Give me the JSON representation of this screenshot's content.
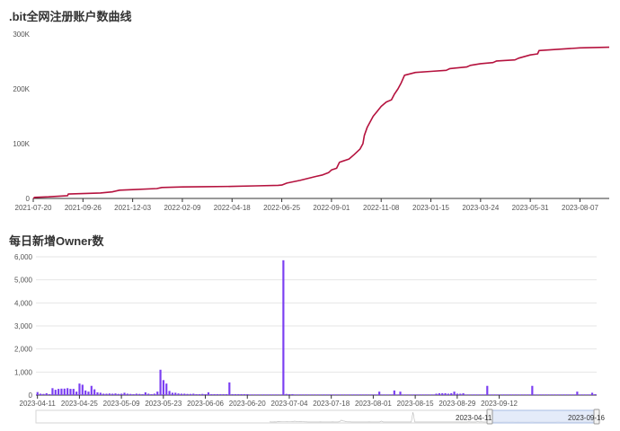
{
  "colors": {
    "line": "#b5123e",
    "bar": "#7b3ff2",
    "axis": "#333333",
    "grid": "#e6e6e6",
    "slider_fill": "#dde6f7",
    "slider_border": "#a9bde3"
  },
  "chart_data": [
    {
      "type": "line",
      "title": ".bit全网注册账户数曲线",
      "x_ticks": [
        "2021-07-20",
        "2021-09-26",
        "2021-12-03",
        "2022-02-09",
        "2022-04-18",
        "2022-06-25",
        "2022-09-01",
        "2022-11-08",
        "2023-01-15",
        "2023-03-24",
        "2023-05-31",
        "2023-08-07"
      ],
      "y_ticks": [
        "0",
        "100K",
        "200K",
        "300K"
      ],
      "ylim": [
        0,
        300000
      ],
      "x_range": [
        "2021-07-20",
        "2023-09-16"
      ],
      "series": [
        {
          "x": [
            "2021-07-20",
            "2021-07-22",
            "2021-08-10",
            "2021-09-05",
            "2021-09-06",
            "2021-10-20",
            "2021-11-05",
            "2021-11-15",
            "2021-12-03",
            "2022-01-05",
            "2022-01-12",
            "2022-02-09",
            "2022-03-10",
            "2022-04-18",
            "2022-05-20",
            "2022-06-20",
            "2022-06-25",
            "2022-07-02",
            "2022-07-20",
            "2022-08-10",
            "2022-08-20",
            "2022-08-28",
            "2022-09-01",
            "2022-09-08",
            "2022-09-12",
            "2022-09-25",
            "2022-10-02",
            "2022-10-10",
            "2022-10-14",
            "2022-10-16",
            "2022-10-20",
            "2022-10-24",
            "2022-10-28",
            "2022-11-02",
            "2022-11-08",
            "2022-11-15",
            "2022-11-22",
            "2022-11-26",
            "2022-12-01",
            "2022-12-05",
            "2022-12-10",
            "2022-12-25",
            "2023-01-15",
            "2023-02-05",
            "2023-02-10",
            "2023-03-05",
            "2023-03-10",
            "2023-03-24",
            "2023-04-10",
            "2023-04-15",
            "2023-05-10",
            "2023-05-15",
            "2023-05-31",
            "2023-06-10",
            "2023-06-12",
            "2023-07-05",
            "2023-08-07",
            "2023-09-16"
          ],
          "y": [
            0,
            2000,
            3000,
            5000,
            8000,
            10000,
            12000,
            15000,
            16000,
            18000,
            20000,
            21000,
            21500,
            22000,
            23000,
            24000,
            24500,
            28000,
            33000,
            40000,
            43000,
            47000,
            52000,
            55000,
            66000,
            72000,
            80000,
            90000,
            100000,
            115000,
            130000,
            140000,
            150000,
            158000,
            168000,
            176000,
            180000,
            190000,
            200000,
            210000,
            225000,
            230000,
            232000,
            234000,
            237000,
            240000,
            243000,
            246000,
            248000,
            251000,
            253000,
            256000,
            262000,
            264000,
            270000,
            272000,
            275000,
            276000
          ]
        }
      ]
    },
    {
      "type": "bar",
      "title": "每日新增Owner数",
      "x_ticks": [
        "2023-04-11",
        "2023-04-25",
        "2023-05-09",
        "2023-05-23",
        "2023-06-06",
        "2023-06-20",
        "2023-07-04",
        "2023-07-18",
        "2023-08-01",
        "2023-08-15",
        "2023-08-29",
        "2023-09-12"
      ],
      "y_ticks": [
        "0",
        "1,000",
        "2,000",
        "3,000",
        "4,000",
        "5,000",
        "6,000"
      ],
      "ylim": [
        0,
        6000
      ],
      "start_date": "2023-04-11",
      "values": [
        130,
        60,
        50,
        80,
        40,
        300,
        230,
        270,
        280,
        280,
        300,
        270,
        270,
        150,
        500,
        450,
        200,
        150,
        400,
        250,
        120,
        100,
        60,
        60,
        70,
        60,
        70,
        50,
        60,
        100,
        60,
        50,
        40,
        60,
        50,
        40,
        120,
        60,
        40,
        60,
        150,
        1100,
        650,
        500,
        180,
        100,
        100,
        70,
        60,
        60,
        50,
        50,
        60,
        40,
        40,
        50,
        40,
        120,
        40,
        40,
        40,
        40,
        40,
        40,
        550,
        40,
        40,
        40,
        40,
        40,
        40,
        30,
        30,
        30,
        30,
        30,
        30,
        30,
        30,
        30,
        30,
        30,
        5850,
        50,
        40,
        40,
        30,
        30,
        30,
        30,
        30,
        30,
        30,
        30,
        30,
        30,
        30,
        30,
        30,
        30,
        30,
        30,
        30,
        30,
        30,
        30,
        30,
        30,
        30,
        30,
        30,
        30,
        30,
        30,
        150,
        30,
        30,
        30,
        30,
        200,
        30,
        150,
        30,
        30,
        30,
        30,
        30,
        30,
        30,
        30,
        30,
        30,
        30,
        60,
        80,
        80,
        80,
        60,
        80,
        150,
        60,
        60,
        80,
        30,
        30,
        30,
        30,
        30,
        30,
        30,
        400,
        30,
        30,
        30,
        30,
        30,
        30,
        30,
        30,
        30,
        30,
        30,
        30,
        30,
        30,
        400,
        30,
        30,
        30,
        30,
        30,
        30,
        30,
        30,
        30,
        30,
        30,
        30,
        30,
        30,
        150,
        30,
        30,
        30,
        30,
        100,
        40
      ],
      "slider": {
        "start_label": "2023-04-11",
        "end_label": "2023-09-16"
      }
    }
  ]
}
